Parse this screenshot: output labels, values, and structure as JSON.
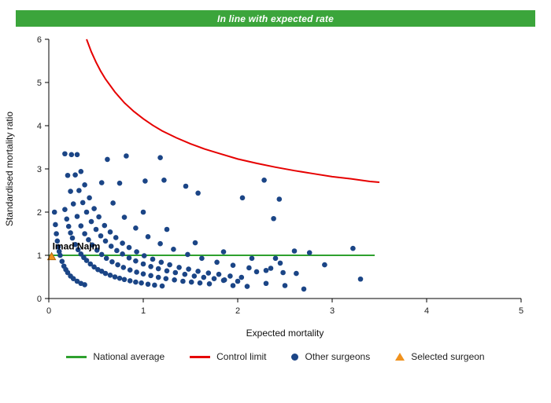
{
  "header": {
    "title": "In line with expected rate",
    "background": "#3BA53B"
  },
  "chart_data": {
    "type": "scatter",
    "title": "",
    "xlabel": "Expected mortality",
    "ylabel": "Standardised mortality ratio",
    "xlim": [
      0,
      5
    ],
    "ylim": [
      0,
      6
    ],
    "xticks": [
      0,
      1,
      2,
      3,
      4,
      5
    ],
    "yticks": [
      0,
      1,
      2,
      3,
      4,
      5,
      6
    ],
    "grid": false,
    "legend_position": "bottom",
    "national_average": {
      "label": "National average",
      "color": "#2EA12E",
      "y": 1,
      "x_start": 0,
      "x_end": 3.45
    },
    "control_limit": {
      "label": "Control limit",
      "color": "#E60000",
      "points": [
        [
          0.4,
          6.0
        ],
        [
          0.45,
          5.71
        ],
        [
          0.5,
          5.47
        ],
        [
          0.55,
          5.26
        ],
        [
          0.6,
          5.08
        ],
        [
          0.7,
          4.78
        ],
        [
          0.8,
          4.53
        ],
        [
          0.9,
          4.33
        ],
        [
          1.0,
          4.16
        ],
        [
          1.1,
          4.01
        ],
        [
          1.2,
          3.88
        ],
        [
          1.35,
          3.72
        ],
        [
          1.5,
          3.58
        ],
        [
          1.65,
          3.46
        ],
        [
          1.8,
          3.36
        ],
        [
          2.0,
          3.23
        ],
        [
          2.2,
          3.13
        ],
        [
          2.4,
          3.04
        ],
        [
          2.6,
          2.96
        ],
        [
          2.8,
          2.89
        ],
        [
          3.0,
          2.82
        ],
        [
          3.2,
          2.77
        ],
        [
          3.4,
          2.71
        ],
        [
          3.5,
          2.69
        ]
      ]
    },
    "other_surgeons": {
      "label": "Other surgeons",
      "color": "#1B4586",
      "points": [
        [
          0.06,
          2.0
        ],
        [
          0.07,
          1.71
        ],
        [
          0.08,
          1.5
        ],
        [
          0.09,
          1.33
        ],
        [
          0.1,
          1.2
        ],
        [
          0.11,
          1.09
        ],
        [
          0.12,
          1.0
        ],
        [
          0.14,
          0.86
        ],
        [
          0.16,
          0.75
        ],
        [
          0.18,
          0.67
        ],
        [
          0.2,
          0.6
        ],
        [
          0.23,
          0.52
        ],
        [
          0.26,
          0.46
        ],
        [
          0.3,
          0.4
        ],
        [
          0.34,
          0.35
        ],
        [
          0.38,
          0.32
        ],
        [
          0.17,
          2.06
        ],
        [
          0.19,
          1.84
        ],
        [
          0.21,
          1.67
        ],
        [
          0.23,
          1.52
        ],
        [
          0.25,
          1.4
        ],
        [
          0.28,
          1.25
        ],
        [
          0.31,
          1.13
        ],
        [
          0.34,
          1.03
        ],
        [
          0.37,
          0.95
        ],
        [
          0.4,
          0.88
        ],
        [
          0.44,
          0.8
        ],
        [
          0.48,
          0.73
        ],
        [
          0.52,
          0.67
        ],
        [
          0.56,
          0.63
        ],
        [
          0.6,
          0.58
        ],
        [
          0.65,
          0.54
        ],
        [
          0.7,
          0.5
        ],
        [
          0.75,
          0.47
        ],
        [
          0.8,
          0.44
        ],
        [
          0.86,
          0.41
        ],
        [
          0.92,
          0.38
        ],
        [
          0.98,
          0.36
        ],
        [
          1.05,
          0.33
        ],
        [
          1.12,
          0.31
        ],
        [
          1.2,
          0.29
        ],
        [
          0.17,
          3.35
        ],
        [
          0.2,
          2.85
        ],
        [
          0.23,
          2.48
        ],
        [
          0.26,
          2.19
        ],
        [
          0.3,
          1.9
        ],
        [
          0.34,
          1.68
        ],
        [
          0.38,
          1.5
        ],
        [
          0.42,
          1.36
        ],
        [
          0.46,
          1.24
        ],
        [
          0.51,
          1.12
        ],
        [
          0.56,
          1.02
        ],
        [
          0.61,
          0.93
        ],
        [
          0.67,
          0.85
        ],
        [
          0.73,
          0.78
        ],
        [
          0.79,
          0.72
        ],
        [
          0.86,
          0.66
        ],
        [
          0.93,
          0.61
        ],
        [
          1.0,
          0.57
        ],
        [
          1.08,
          0.53
        ],
        [
          1.16,
          0.49
        ],
        [
          1.24,
          0.46
        ],
        [
          1.33,
          0.43
        ],
        [
          1.42,
          0.4
        ],
        [
          1.51,
          0.38
        ],
        [
          1.6,
          0.36
        ],
        [
          1.7,
          0.34
        ],
        [
          0.24,
          3.33
        ],
        [
          0.28,
          2.86
        ],
        [
          0.32,
          2.5
        ],
        [
          0.36,
          2.22
        ],
        [
          0.4,
          2.0
        ],
        [
          0.45,
          1.78
        ],
        [
          0.5,
          1.6
        ],
        [
          0.55,
          1.45
        ],
        [
          0.6,
          1.33
        ],
        [
          0.66,
          1.21
        ],
        [
          0.72,
          1.11
        ],
        [
          0.78,
          1.03
        ],
        [
          0.85,
          0.94
        ],
        [
          0.92,
          0.87
        ],
        [
          1.0,
          0.8
        ],
        [
          1.08,
          0.74
        ],
        [
          1.16,
          0.69
        ],
        [
          1.25,
          0.64
        ],
        [
          1.34,
          0.6
        ],
        [
          1.44,
          0.56
        ],
        [
          1.54,
          0.52
        ],
        [
          1.64,
          0.49
        ],
        [
          1.75,
          0.46
        ],
        [
          1.86,
          0.43
        ],
        [
          2.0,
          0.4
        ],
        [
          0.3,
          3.33
        ],
        [
          0.34,
          2.94
        ],
        [
          0.38,
          2.63
        ],
        [
          0.43,
          2.33
        ],
        [
          0.48,
          2.08
        ],
        [
          0.53,
          1.89
        ],
        [
          0.59,
          1.69
        ],
        [
          0.65,
          1.54
        ],
        [
          0.71,
          1.41
        ],
        [
          0.78,
          1.28
        ],
        [
          0.85,
          1.18
        ],
        [
          0.93,
          1.08
        ],
        [
          1.01,
          0.99
        ],
        [
          1.1,
          0.91
        ],
        [
          1.19,
          0.84
        ],
        [
          1.28,
          0.78
        ],
        [
          1.38,
          0.72
        ],
        [
          1.48,
          0.68
        ],
        [
          1.58,
          0.63
        ],
        [
          1.69,
          0.59
        ],
        [
          1.8,
          0.56
        ],
        [
          1.92,
          0.52
        ],
        [
          2.04,
          0.49
        ],
        [
          0.56,
          2.68
        ],
        [
          0.68,
          2.21
        ],
        [
          0.8,
          1.88
        ],
        [
          0.92,
          1.63
        ],
        [
          1.05,
          1.43
        ],
        [
          1.18,
          1.27
        ],
        [
          1.32,
          1.14
        ],
        [
          1.47,
          1.02
        ],
        [
          1.62,
          0.93
        ],
        [
          1.78,
          0.84
        ],
        [
          1.95,
          0.77
        ],
        [
          2.12,
          0.71
        ],
        [
          2.3,
          0.65
        ],
        [
          2.48,
          0.6
        ],
        [
          0.75,
          2.67
        ],
        [
          1.0,
          2.0
        ],
        [
          1.25,
          1.6
        ],
        [
          1.55,
          1.29
        ],
        [
          1.85,
          1.08
        ],
        [
          2.15,
          0.93
        ],
        [
          2.45,
          0.82
        ],
        [
          0.62,
          3.22
        ],
        [
          0.82,
          3.3
        ],
        [
          1.18,
          3.26
        ],
        [
          1.02,
          2.72
        ],
        [
          1.22,
          2.74
        ],
        [
          1.45,
          2.6
        ],
        [
          1.58,
          2.44
        ],
        [
          2.05,
          2.33
        ],
        [
          2.28,
          2.74
        ],
        [
          2.44,
          2.3
        ],
        [
          2.38,
          1.85
        ],
        [
          3.22,
          1.16
        ],
        [
          2.6,
          1.1
        ],
        [
          2.76,
          1.06
        ],
        [
          2.92,
          0.78
        ],
        [
          3.3,
          0.45
        ],
        [
          2.2,
          0.62
        ],
        [
          1.95,
          0.3
        ],
        [
          2.1,
          0.28
        ],
        [
          2.3,
          0.35
        ],
        [
          2.5,
          0.3
        ],
        [
          2.7,
          0.22
        ],
        [
          1.85,
          0.42
        ],
        [
          2.62,
          0.58
        ],
        [
          2.4,
          0.93
        ],
        [
          2.35,
          0.7
        ]
      ]
    },
    "selected_surgeon": {
      "label": "Selected surgeon",
      "name": "Imad Najm",
      "color": "#F0921E",
      "point": [
        0.03,
        0.97
      ]
    }
  }
}
